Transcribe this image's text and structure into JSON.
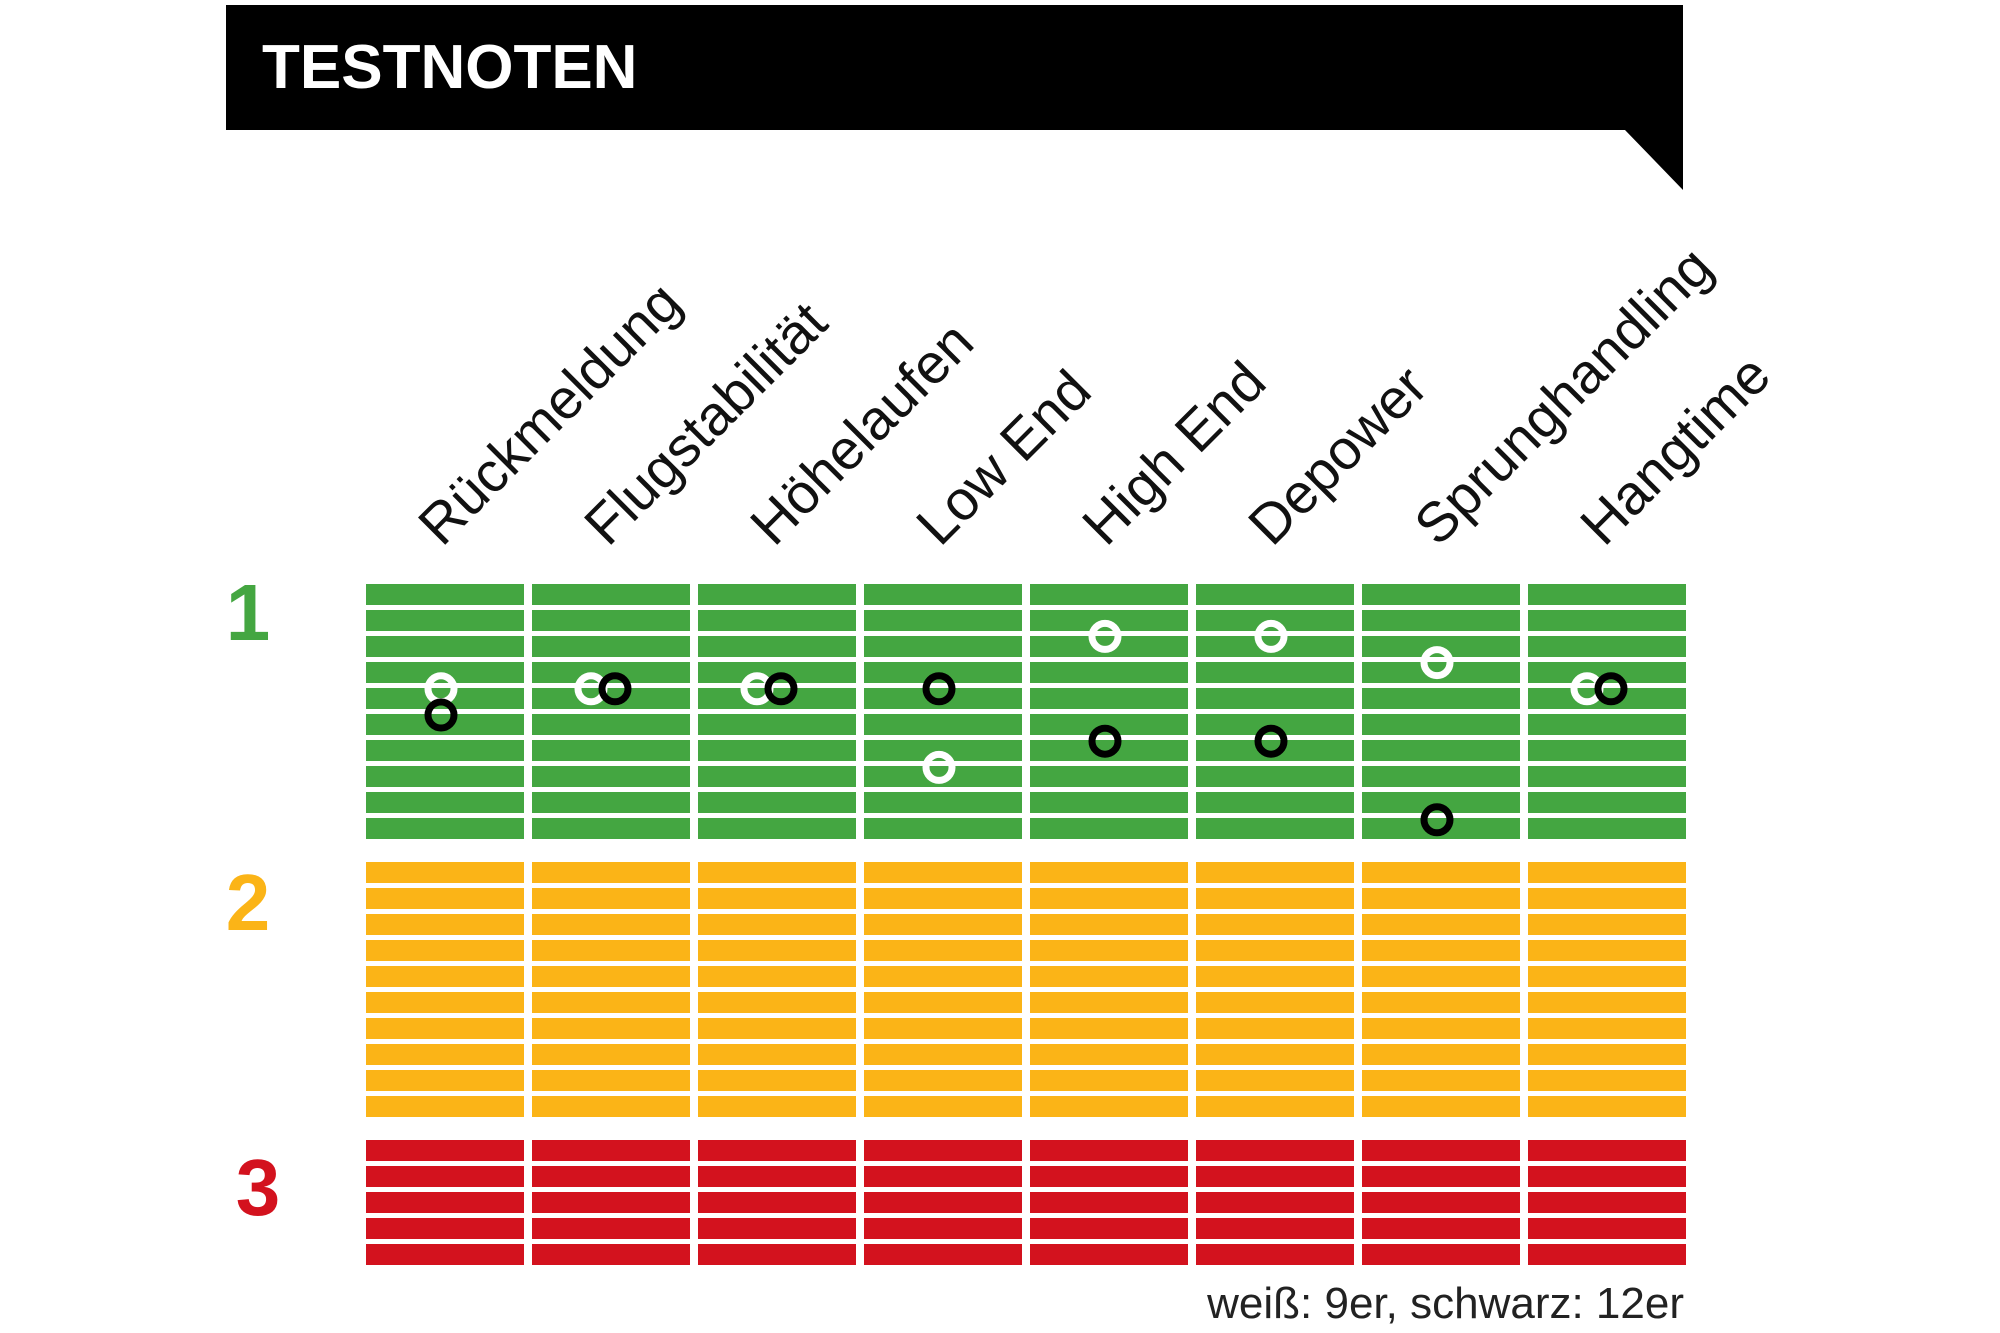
{
  "title": "TESTNOTEN",
  "note": "weiß: 9er, schwarz: 12er",
  "colors": {
    "banner": "#000000",
    "grade1": "#44a641",
    "grade2": "#fbb417",
    "grade3": "#d3121e",
    "white_marker": "#ffffff",
    "black_marker": "#000000"
  },
  "chart_data": {
    "type": "scatter",
    "title": "TESTNOTEN",
    "categories": [
      "Rückmeldung",
      "Flugstabilität",
      "Höhelaufen",
      "Low End",
      "High End",
      "Depower",
      "Sprunghandling",
      "Hangtime"
    ],
    "grades": [
      {
        "label": "1",
        "from": 1.0,
        "to": 2.0,
        "color": "#44a641"
      },
      {
        "label": "2",
        "from": 2.0,
        "to": 3.0,
        "color": "#fbb417"
      },
      {
        "label": "3",
        "from": 3.0,
        "to": 3.5,
        "color": "#d3121e"
      }
    ],
    "ylim": [
      1.0,
      3.5
    ],
    "y_inverted": true,
    "series": [
      {
        "name": "9er",
        "marker": "white",
        "values": [
          1.4,
          1.4,
          1.4,
          1.7,
          1.2,
          1.2,
          1.3,
          1.4
        ]
      },
      {
        "name": "12er",
        "marker": "black",
        "values": [
          1.5,
          1.4,
          1.4,
          1.4,
          1.6,
          1.6,
          1.9,
          1.4
        ]
      }
    ],
    "legend": "bottom-right"
  }
}
